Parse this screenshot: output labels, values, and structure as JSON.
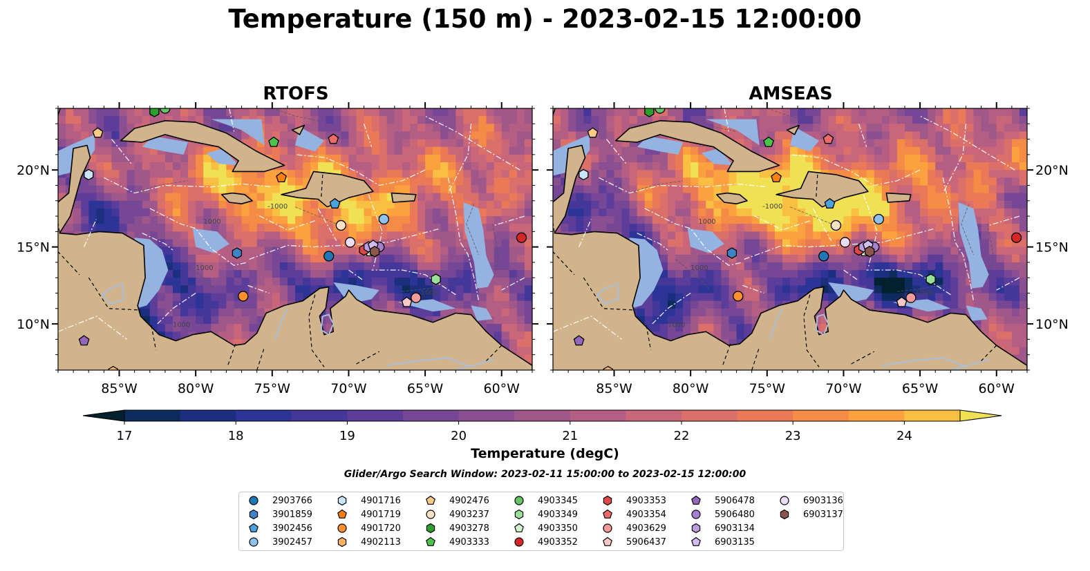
{
  "title": "Temperature (150 m) - 2023-02-15 12:00:00",
  "panels": [
    {
      "title": "RTOFS"
    },
    {
      "title": "AMSEAS"
    }
  ],
  "colorbar": {
    "label": "Temperature (degC)",
    "min": 16.5,
    "max": 24.5,
    "step": 0.5,
    "ticks": [
      17,
      18,
      19,
      20,
      21,
      22,
      23,
      24
    ],
    "tick_labels": [
      "17",
      "18",
      "19",
      "20",
      "21",
      "22",
      "23",
      "24"
    ],
    "colors": [
      "#03202e",
      "#0d2b5c",
      "#1c2f7f",
      "#2c3596",
      "#45379a",
      "#5d3d9a",
      "#764795",
      "#8a4f91",
      "#a0588a",
      "#b55e84",
      "#c9667a",
      "#db6f6a",
      "#ea7a57",
      "#f58c46",
      "#fba13f",
      "#f9bf42",
      "#f0e154"
    ],
    "extend": "both"
  },
  "search_window": "Glider/Argo Search Window: 2023-02-11 15:00:00 to 2023-02-15 12:00:00",
  "colors": {
    "land": "#d2b48c",
    "shelf": "#94b3e0",
    "marker_edge": "#000000"
  },
  "chart_data": {
    "type": "heatmap",
    "title": "Temperature (150 m) - 2023-02-15 12:00:00",
    "xlim": [
      -89,
      -58
    ],
    "ylim": [
      7,
      24
    ],
    "x_ticks": [
      -85,
      -80,
      -75,
      -70,
      -65,
      -60
    ],
    "x_tick_labels": [
      "85°W",
      "80°W",
      "75°W",
      "70°W",
      "65°W",
      "60°W"
    ],
    "y_ticks": [
      10,
      15,
      20
    ],
    "y_tick_labels": [
      "10°N",
      "15°N",
      "20°N"
    ],
    "series": [
      {
        "name": "2903766",
        "color": "#1f77b4",
        "marker": "circle",
        "lon": -71.3,
        "lat": 14.4
      },
      {
        "name": "3901859",
        "color": "#3e83c7",
        "marker": "hexagon",
        "lon": -77.3,
        "lat": 14.6
      },
      {
        "name": "3902456",
        "color": "#4aa3df",
        "marker": "pentagon",
        "lon": -70.9,
        "lat": 17.8
      },
      {
        "name": "3902457",
        "color": "#8ec1ee",
        "marker": "circle",
        "lon": -67.7,
        "lat": 16.8
      },
      {
        "name": "4901716",
        "color": "#c8e6f7",
        "marker": "hexagon",
        "lon": -87.0,
        "lat": 19.7
      },
      {
        "name": "4901719",
        "color": "#ff7f0e",
        "marker": "pentagon",
        "lon": -74.4,
        "lat": 19.5
      },
      {
        "name": "4901720",
        "color": "#ff9030",
        "marker": "circle",
        "lon": -76.9,
        "lat": 11.8
      },
      {
        "name": "4902113",
        "color": "#ffb060",
        "marker": "hexagon",
        "lon": -85.4,
        "lat": 6.9
      },
      {
        "name": "4902476",
        "color": "#ffc98a",
        "marker": "pentagon",
        "lon": -86.4,
        "lat": 22.4
      },
      {
        "name": "4903237",
        "color": "#ffe2c4",
        "marker": "circle",
        "lon": -70.5,
        "lat": 16.4
      },
      {
        "name": "4903278",
        "color": "#2ca02c",
        "marker": "hexagon",
        "lon": -82.7,
        "lat": 23.8
      },
      {
        "name": "4903333",
        "color": "#4cc44c",
        "marker": "pentagon",
        "lon": -74.9,
        "lat": 21.8
      },
      {
        "name": "4903345",
        "color": "#66c466",
        "marker": "circle",
        "lon": -82.0,
        "lat": 24.0
      },
      {
        "name": "4903349",
        "color": "#98e098",
        "marker": "hexagon",
        "lon": -64.3,
        "lat": 12.9
      },
      {
        "name": "4903350",
        "color": "#d2f5d2",
        "marker": "pentagon",
        "lon": -68.6,
        "lat": 14.7
      },
      {
        "name": "4903352",
        "color": "#d62728",
        "marker": "circle",
        "lon": -58.7,
        "lat": 15.6
      },
      {
        "name": "4903353",
        "color": "#e04848",
        "marker": "hexagon",
        "lon": -69.0,
        "lat": 14.8
      },
      {
        "name": "4903354",
        "color": "#f06a6a",
        "marker": "pentagon",
        "lon": -71.0,
        "lat": 22.0
      },
      {
        "name": "4903629",
        "color": "#f59a9a",
        "marker": "circle",
        "lon": -65.6,
        "lat": 11.7
      },
      {
        "name": "5906437",
        "color": "#fcc8c8",
        "marker": "pentagon",
        "lon": -66.2,
        "lat": 11.4
      },
      {
        "name": "5906478",
        "color": "#9467bd",
        "marker": "pentagon",
        "lon": -87.3,
        "lat": 8.9
      },
      {
        "name": "5906480",
        "color": "#a77fd0",
        "marker": "circle",
        "lon": -68.0,
        "lat": 15.0
      },
      {
        "name": "6903134",
        "color": "#bc9be0",
        "marker": "hexagon",
        "lon": -68.7,
        "lat": 15.0
      },
      {
        "name": "6903135",
        "color": "#d3bdee",
        "marker": "pentagon",
        "lon": -68.4,
        "lat": 15.1
      },
      {
        "name": "6903136",
        "color": "#ebdcf8",
        "marker": "circle",
        "lon": -69.9,
        "lat": 15.3
      },
      {
        "name": "6903137",
        "color": "#8c564b",
        "marker": "hexagon",
        "lon": -68.3,
        "lat": 14.7
      }
    ]
  }
}
